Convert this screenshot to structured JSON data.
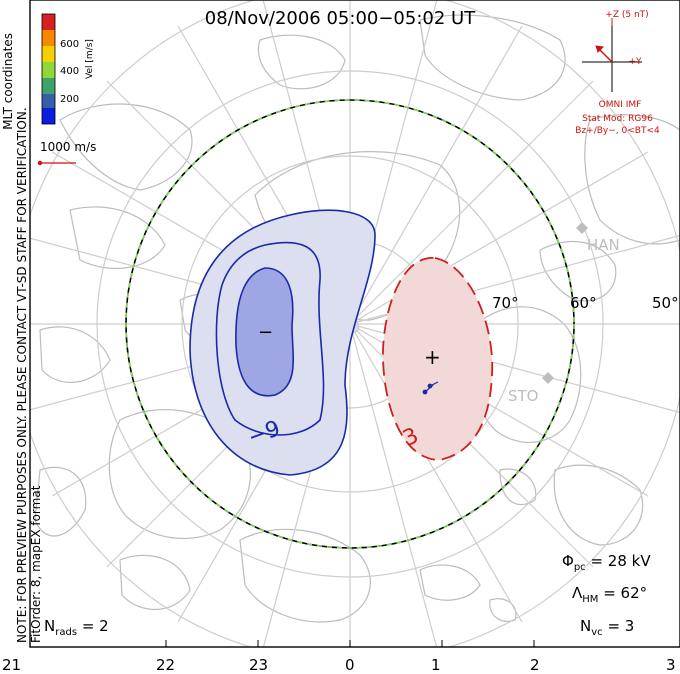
{
  "title": "08/Nov/2006 05:00−05:02 UT",
  "side_text": {
    "note": "NOTE: FOR PREVIEW PURPOSES ONLY. PLEASE CONTACT VT-SD STAFF FOR VERIFICATION.",
    "fitorder": "FitOrder: 8, mapEX format",
    "coords": "MLT coordinates"
  },
  "colorbar": {
    "label": "Vel [m/s]",
    "ticks": [
      "600",
      "400",
      "200"
    ],
    "colors": [
      "#0b1ddf",
      "#3560a8",
      "#3fa26b",
      "#8fd83a",
      "#f5d000",
      "#f58a00",
      "#d82020"
    ]
  },
  "reference_vector": {
    "label": "1000 m/s",
    "color": "#d01010"
  },
  "imf": {
    "bz_label": "+Z (5 nT)",
    "by_label": "+Y",
    "source": "OMNI IMF",
    "model": "Stat Mod: RG96",
    "condition": "Bz+/By−, 0<BT<4"
  },
  "latitude_labels": [
    "70°",
    "60°",
    "50°"
  ],
  "stations": [
    "HAN",
    "STO"
  ],
  "contours": {
    "negative_cell": {
      "label": "−9",
      "min_marker": "−",
      "color": "#1a2aa8",
      "fill": "#d8dbee"
    },
    "positive_cell": {
      "label": "3",
      "max_marker": "+",
      "color": "#cc1f1f",
      "fill": "#f3d8d8"
    }
  },
  "stats": {
    "phi": "Φ",
    "phi_sub": "pc",
    "phi_value": "= 28 kV",
    "lambda": "Λ",
    "lambda_sub": "HM",
    "lambda_value": "= 62°",
    "nvc": "N",
    "nvc_sub": "vc",
    "nvc_value": "= 3",
    "nrads": "N",
    "nrads_sub": "rads",
    "nrads_value": "= 2"
  },
  "mlt_labels": [
    "21",
    "22",
    "23",
    "0",
    "1",
    "2",
    "3"
  ]
}
